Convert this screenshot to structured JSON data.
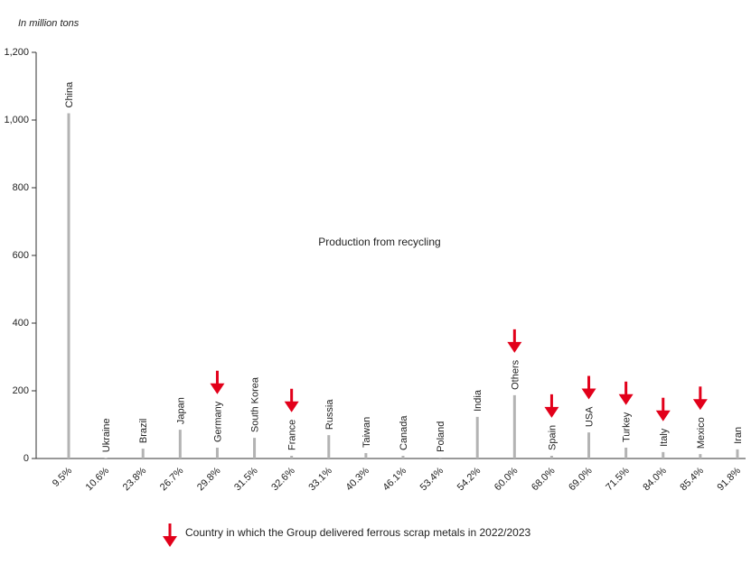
{
  "chart_data": {
    "type": "bar",
    "y_label": "In million tons",
    "annotation": "Production from recycling",
    "legend_text": "Country in which the Group delivered ferrous scrap metals in 2022/2023",
    "categories": [
      "China",
      "Ukraine",
      "Brazil",
      "Japan",
      "Germany",
      "South Korea",
      "France",
      "Russia",
      "Taiwan",
      "Canada",
      "Poland",
      "India",
      "Others",
      "Spain",
      "USA",
      "Turkey",
      "Italy",
      "Mexico",
      "Iran"
    ],
    "values": [
      1020,
      2,
      29,
      85,
      32,
      61,
      8,
      69,
      16,
      8,
      3,
      123,
      187,
      8,
      77,
      32,
      19,
      13,
      27
    ],
    "shares": [
      "9.5%",
      "10.6%",
      "23.8%",
      "26.7%",
      "29.8%",
      "31.5%",
      "32.6%",
      "33.1%",
      "40.3%",
      "46.1%",
      "53.4%",
      "54.2%",
      "60.0%",
      "68.0%",
      "69.0%",
      "71.5%",
      "84.0%",
      "85.4%",
      "91.8%"
    ],
    "delivered": [
      false,
      false,
      false,
      false,
      true,
      false,
      true,
      false,
      false,
      false,
      false,
      false,
      true,
      true,
      true,
      true,
      true,
      true,
      false
    ],
    "color": "#b3b3b3",
    "arrow_color": "#e2001a",
    "ylim": [
      0,
      1200
    ],
    "yticks": [
      0,
      200,
      400,
      600,
      800,
      {
        "value": 1000,
        "label": "1,000"
      },
      {
        "value": 1200,
        "label": "1,200"
      }
    ]
  }
}
